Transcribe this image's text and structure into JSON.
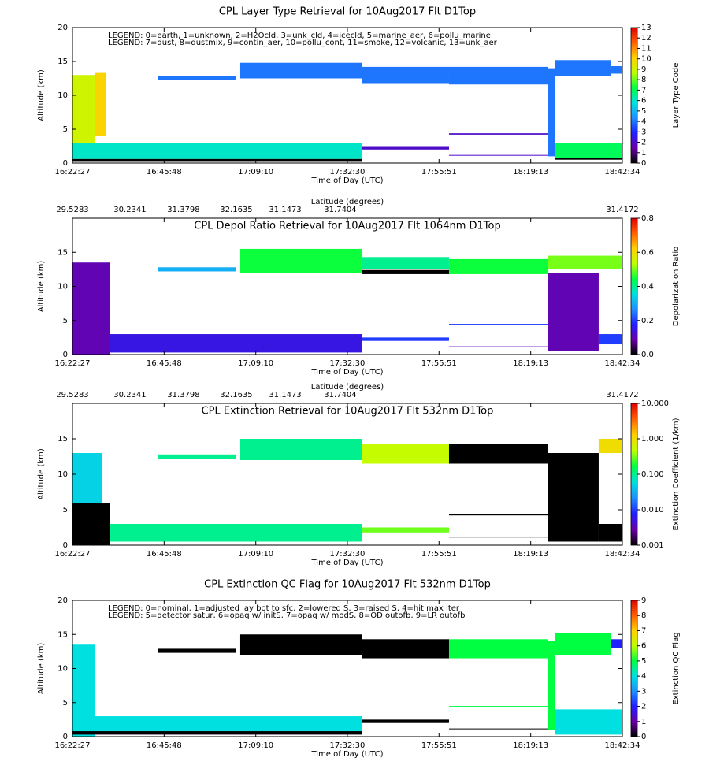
{
  "chart_data": [
    {
      "type": "curtain",
      "title": "CPL Layer Type Retrieval for 10Aug2017 Flt D1Top",
      "legend_lines": [
        "LEGEND: 0=earth, 1=unknown, 2=H2Ocld, 3=unk_cld, 4=icecld, 5=marine_aer, 6=pollu_marine",
        "LEGEND: 7=dust, 8=dustmix, 9=contin_aer, 10=pollu_cont, 11=smoke, 12=volcanic, 13=unk_aer"
      ],
      "xlabel": "Time of Day (UTC)",
      "ylabel": "Altitude (km)",
      "cbar_label": "Layer Type Code",
      "xlim": [
        58947,
        67354
      ],
      "xticks": [
        {
          "value": 58947,
          "label": "16:22:27"
        },
        {
          "value": 60348,
          "label": "16:45:48"
        },
        {
          "value": 61750,
          "label": "17:09:10"
        },
        {
          "value": 63150,
          "label": "17:32:30"
        },
        {
          "value": 64551,
          "label": "17:55:51"
        },
        {
          "value": 65953,
          "label": "18:19:13"
        },
        {
          "value": 67354,
          "label": "18:42:34"
        }
      ],
      "ylim": [
        0,
        20
      ],
      "yticks": [
        0,
        5,
        10,
        15,
        20
      ],
      "clim": [
        0,
        13
      ],
      "cticks": [
        0,
        1,
        2,
        3,
        4,
        5,
        6,
        7,
        8,
        9,
        10,
        11,
        12,
        13
      ],
      "log": false,
      "colormap": [
        "#000000",
        "#6a00a8",
        "#2020ff",
        "#1e90ff",
        "#00e0e0",
        "#00ff40",
        "#c0ff00",
        "#ffd000",
        "#ff6000",
        "#e00000"
      ],
      "layers": [
        {
          "x0": 58947,
          "x1": 59284,
          "bottom": 1,
          "top": 13,
          "value": 9
        },
        {
          "x0": 59284,
          "x1": 59465,
          "bottom": 4,
          "top": 13.3,
          "value": 10
        },
        {
          "x0": 58947,
          "x1": 63379,
          "bottom": 0.6,
          "top": 3,
          "value": 6
        },
        {
          "x0": 58947,
          "x1": 63379,
          "bottom": 0.3,
          "top": 0.6,
          "value": 0
        },
        {
          "x0": 60248,
          "x1": 61452,
          "bottom": 12.3,
          "top": 12.9,
          "value": 4
        },
        {
          "x0": 61512,
          "x1": 63379,
          "bottom": 12.5,
          "top": 14.8,
          "value": 4
        },
        {
          "x0": 63379,
          "x1": 64704,
          "bottom": 11.8,
          "top": 14.2,
          "value": 4
        },
        {
          "x0": 64704,
          "x1": 66210,
          "bottom": 11.6,
          "top": 14.2,
          "value": 4
        },
        {
          "x0": 63379,
          "x1": 64704,
          "bottom": 2.0,
          "top": 2.5,
          "value": 2
        },
        {
          "x0": 64704,
          "x1": 66210,
          "bottom": 4.2,
          "top": 4.4,
          "value": 2
        },
        {
          "x0": 64704,
          "x1": 66210,
          "bottom": 1.1,
          "top": 1.2,
          "value": 2
        },
        {
          "x0": 66210,
          "x1": 66330,
          "bottom": 1,
          "top": 14,
          "value": 4
        },
        {
          "x0": 66330,
          "x1": 67173,
          "bottom": 12.8,
          "top": 15.2,
          "value": 4
        },
        {
          "x0": 67173,
          "x1": 67354,
          "bottom": 13.2,
          "top": 14.3,
          "value": 4
        },
        {
          "x0": 66330,
          "x1": 67354,
          "bottom": 0.8,
          "top": 3,
          "value": 7
        },
        {
          "x0": 66330,
          "x1": 67354,
          "bottom": 0.5,
          "top": 0.8,
          "value": 0
        }
      ]
    },
    {
      "type": "curtain",
      "title": "CPL Depol Ratio Retrieval for 10Aug2017 Flt 1064nm D1Top",
      "lat_label": "Latitude (degrees)",
      "lat_ticks": [
        {
          "x": 58947,
          "lat": 29.5283
        },
        {
          "x": 59826,
          "lat": 30.2341
        },
        {
          "x": 60645,
          "lat": 31.3798
        },
        {
          "x": 61452,
          "lat": 32.1635
        },
        {
          "x": 62199,
          "lat": 31.1473
        },
        {
          "x": 63042,
          "lat": 31.7404
        },
        {
          "x": 67354,
          "lat": 31.4172
        }
      ],
      "xlabel": "Time of Day (UTC)",
      "ylabel": "Altitude (km)",
      "cbar_label": "Depolarization Ratio",
      "xlim": [
        58947,
        67354
      ],
      "xticks": [
        {
          "value": 58947,
          "label": "16:22:27"
        },
        {
          "value": 60348,
          "label": "16:45:48"
        },
        {
          "value": 61750,
          "label": "17:09:10"
        },
        {
          "value": 63150,
          "label": "17:32:30"
        },
        {
          "value": 64551,
          "label": "17:55:51"
        },
        {
          "value": 65953,
          "label": "18:19:13"
        },
        {
          "value": 67354,
          "label": "18:42:34"
        }
      ],
      "ylim": [
        0,
        20
      ],
      "yticks": [
        0,
        5,
        10,
        15
      ],
      "clim": [
        0,
        0.8
      ],
      "cticks": [
        {
          "value": 0,
          "label": "0.0"
        },
        0.2,
        0.4,
        0.6,
        0.8
      ],
      "log": false,
      "colormap": [
        "#000000",
        "#6a00a8",
        "#2020ff",
        "#1e90ff",
        "#00e0e0",
        "#00ff40",
        "#c0ff00",
        "#ffd000",
        "#ff6000",
        "#e00000"
      ],
      "layers": [
        {
          "x0": 58947,
          "x1": 59525,
          "bottom": 0,
          "top": 13.5,
          "value": 0.1
        },
        {
          "x0": 59525,
          "x1": 63379,
          "bottom": 0.3,
          "top": 3,
          "value": 0.15
        },
        {
          "x0": 60248,
          "x1": 61452,
          "bottom": 12.2,
          "top": 12.8,
          "value": 0.3
        },
        {
          "x0": 61512,
          "x1": 63379,
          "bottom": 12,
          "top": 15.5,
          "value": 0.45
        },
        {
          "x0": 63379,
          "x1": 64704,
          "bottom": 12.5,
          "top": 14.3,
          "value": 0.4
        },
        {
          "x0": 63379,
          "x1": 64704,
          "bottom": 11.8,
          "top": 12.4,
          "value": 0
        },
        {
          "x0": 64704,
          "x1": 66210,
          "bottom": 11.8,
          "top": 14,
          "value": 0.45
        },
        {
          "x0": 66210,
          "x1": 67354,
          "bottom": 12.5,
          "top": 14.5,
          "value": 0.5
        },
        {
          "x0": 63379,
          "x1": 64704,
          "bottom": 2,
          "top": 2.5,
          "value": 0.2
        },
        {
          "x0": 64704,
          "x1": 66210,
          "bottom": 4.3,
          "top": 4.5,
          "value": 0.2
        },
        {
          "x0": 64704,
          "x1": 66210,
          "bottom": 1.1,
          "top": 1.2,
          "value": 0.1
        },
        {
          "x0": 66210,
          "x1": 66992,
          "bottom": 0.5,
          "top": 12,
          "value": 0.1
        },
        {
          "x0": 66992,
          "x1": 67354,
          "bottom": 1.5,
          "top": 3,
          "value": 0.2
        }
      ]
    },
    {
      "type": "curtain",
      "title": "CPL Extinction Retrieval for 10Aug2017 Flt 532nm D1Top",
      "lat_label": "Latitude (degrees)",
      "lat_ticks": [
        {
          "x": 58947,
          "lat": 29.5283
        },
        {
          "x": 59826,
          "lat": 30.2341
        },
        {
          "x": 60645,
          "lat": 31.3798
        },
        {
          "x": 61452,
          "lat": 32.1635
        },
        {
          "x": 62199,
          "lat": 31.1473
        },
        {
          "x": 63042,
          "lat": 31.7404
        },
        {
          "x": 67354,
          "lat": 31.4172
        }
      ],
      "xlabel": "Time of Day (UTC)",
      "ylabel": "Altitude (km)",
      "cbar_label": "Extinction Coefficient (1/km)",
      "xlim": [
        58947,
        67354
      ],
      "xticks": [
        {
          "value": 58947,
          "label": "16:22:27"
        },
        {
          "value": 60348,
          "label": "16:45:48"
        },
        {
          "value": 61750,
          "label": "17:09:10"
        },
        {
          "value": 63150,
          "label": "17:32:30"
        },
        {
          "value": 64551,
          "label": "17:55:51"
        },
        {
          "value": 65953,
          "label": "18:19:13"
        },
        {
          "value": 67354,
          "label": "18:42:34"
        }
      ],
      "ylim": [
        0,
        20
      ],
      "yticks": [
        0,
        5,
        10,
        15
      ],
      "clim": [
        0.001,
        10
      ],
      "cticks": [
        {
          "value": 0.001,
          "label": "0.001"
        },
        {
          "value": 0.01,
          "label": "0.010"
        },
        {
          "value": 0.1,
          "label": "0.100"
        },
        {
          "value": 1,
          "label": "1.000"
        },
        {
          "value": 10,
          "label": "10.000"
        }
      ],
      "log": true,
      "colormap": [
        "#000000",
        "#6a00a8",
        "#2020ff",
        "#1e90ff",
        "#00e0e0",
        "#00ff40",
        "#c0ff00",
        "#ffd000",
        "#ff6000",
        "#e00000"
      ],
      "layers": [
        {
          "x0": 58947,
          "x1": 59405,
          "bottom": 5,
          "top": 13,
          "value": 0.05
        },
        {
          "x0": 58947,
          "x1": 59525,
          "bottom": 0,
          "top": 6,
          "value": 0.001
        },
        {
          "x0": 59525,
          "x1": 63379,
          "bottom": 0.5,
          "top": 3,
          "value": 0.1
        },
        {
          "x0": 60248,
          "x1": 61452,
          "bottom": 12.2,
          "top": 12.8,
          "value": 0.1
        },
        {
          "x0": 61512,
          "x1": 63379,
          "bottom": 12,
          "top": 15,
          "value": 0.1
        },
        {
          "x0": 63379,
          "x1": 64704,
          "bottom": 11.5,
          "top": 14.3,
          "value": 0.5
        },
        {
          "x0": 64704,
          "x1": 66210,
          "bottom": 11.5,
          "top": 14.3,
          "value": 0.001
        },
        {
          "x0": 66210,
          "x1": 66992,
          "bottom": 0.5,
          "top": 13,
          "value": 0.001
        },
        {
          "x0": 66992,
          "x1": 67354,
          "bottom": 13,
          "top": 15,
          "value": 1
        },
        {
          "x0": 63379,
          "x1": 64704,
          "bottom": 1.8,
          "top": 2.5,
          "value": 0.3
        },
        {
          "x0": 64704,
          "x1": 66210,
          "bottom": 4.2,
          "top": 4.4,
          "value": 0.001
        },
        {
          "x0": 64704,
          "x1": 66210,
          "bottom": 1.1,
          "top": 1.2,
          "value": 0.001
        },
        {
          "x0": 66992,
          "x1": 67354,
          "bottom": 0.5,
          "top": 3,
          "value": 0.001
        }
      ]
    },
    {
      "type": "curtain",
      "title": "CPL Extinction QC Flag for 10Aug2017 Flt 532nm D1Top",
      "legend_lines": [
        "LEGEND: 0=nominal, 1=adjusted lay bot to sfc, 2=lowered S, 3=raised S, 4=hit max iter",
        "LEGEND: 5=detector satur, 6=opaq w/ initS, 7=opaq w/ modS, 8=OD outofb, 9=LR outofb"
      ],
      "xlabel": "Time of Day (UTC)",
      "ylabel": "Altitude (km)",
      "cbar_label": "Extinction QC Flag",
      "xlim": [
        58947,
        67354
      ],
      "xticks": [
        {
          "value": 58947,
          "label": "16:22:27"
        },
        {
          "value": 60348,
          "label": "16:45:48"
        },
        {
          "value": 61750,
          "label": "17:09:10"
        },
        {
          "value": 63150,
          "label": "17:32:30"
        },
        {
          "value": 64551,
          "label": "17:55:51"
        },
        {
          "value": 65953,
          "label": "18:19:13"
        },
        {
          "value": 67354,
          "label": "18:42:34"
        }
      ],
      "ylim": [
        0,
        20
      ],
      "yticks": [
        0,
        5,
        10,
        15,
        20
      ],
      "clim": [
        0,
        9
      ],
      "cticks": [
        0,
        1,
        2,
        3,
        4,
        5,
        6,
        7,
        8,
        9
      ],
      "log": false,
      "colormap": [
        "#000000",
        "#6a00a8",
        "#2020ff",
        "#1e90ff",
        "#00e0e0",
        "#00ff40",
        "#c0ff00",
        "#ffd000",
        "#ff6000",
        "#e00000"
      ],
      "layers": [
        {
          "x0": 58947,
          "x1": 59284,
          "bottom": 0,
          "top": 13.5,
          "value": 4
        },
        {
          "x0": 59284,
          "x1": 63379,
          "bottom": 0.5,
          "top": 3,
          "value": 4
        },
        {
          "x0": 58947,
          "x1": 63379,
          "bottom": 0.3,
          "top": 0.8,
          "value": 0
        },
        {
          "x0": 60248,
          "x1": 61452,
          "bottom": 12.3,
          "top": 12.9,
          "value": 0
        },
        {
          "x0": 61512,
          "x1": 63379,
          "bottom": 12,
          "top": 15,
          "value": 0
        },
        {
          "x0": 63379,
          "x1": 64704,
          "bottom": 11.5,
          "top": 14.3,
          "value": 0
        },
        {
          "x0": 64704,
          "x1": 66210,
          "bottom": 11.5,
          "top": 14.3,
          "value": 5
        },
        {
          "x0": 66210,
          "x1": 66330,
          "bottom": 1,
          "top": 14,
          "value": 5
        },
        {
          "x0": 66330,
          "x1": 67173,
          "bottom": 12,
          "top": 15.2,
          "value": 5
        },
        {
          "x0": 67173,
          "x1": 67354,
          "bottom": 13,
          "top": 14.3,
          "value": 2
        },
        {
          "x0": 63379,
          "x1": 64704,
          "bottom": 2,
          "top": 2.5,
          "value": 0
        },
        {
          "x0": 64704,
          "x1": 66210,
          "bottom": 4.3,
          "top": 4.5,
          "value": 5
        },
        {
          "x0": 64704,
          "x1": 66210,
          "bottom": 1.1,
          "top": 1.2,
          "value": 0
        },
        {
          "x0": 66330,
          "x1": 67354,
          "bottom": 0.3,
          "top": 4,
          "value": 4
        }
      ]
    }
  ]
}
